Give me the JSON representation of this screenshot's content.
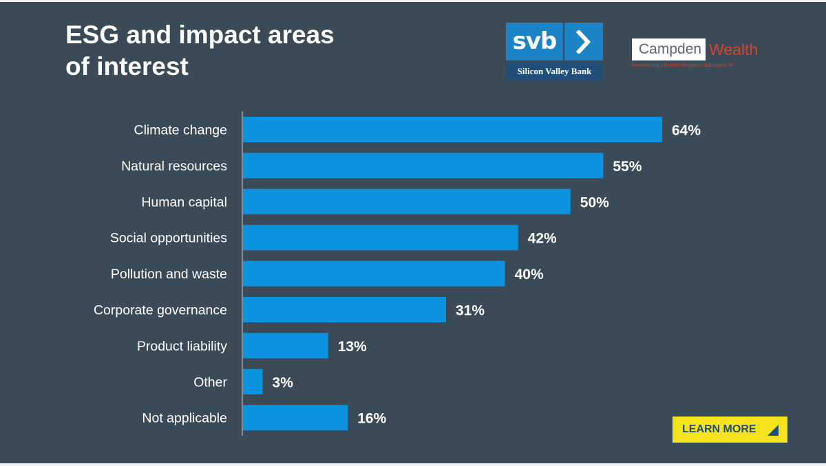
{
  "title": {
    "line1": "ESG and impact areas",
    "line2": "of interest"
  },
  "svb_logo": {
    "word": "svb",
    "subtitle": "Silicon Valley Bank",
    "icon": "chevron-right-icon",
    "color": "#1c84c6"
  },
  "campden_logo": {
    "part1": "Campden",
    "part2": "Wealth",
    "tagline": "Membership | Events   Research   Education   IFI",
    "color": "#d2452f"
  },
  "cta": {
    "label": "LEARN MORE",
    "icon": "triangle-arrow-icon",
    "color": "#f4e31c"
  },
  "colors": {
    "background": "#3a4a56",
    "bar": "#0b93df",
    "text": "#ffffff"
  },
  "chart_data": {
    "type": "bar",
    "orientation": "horizontal",
    "categories": [
      "Climate change",
      "Natural resources",
      "Human capital",
      "Social opportunities",
      "Pollution and waste",
      "Corporate governance",
      "Product liability",
      "Other",
      "Not applicable"
    ],
    "values": [
      64,
      55,
      50,
      42,
      40,
      31,
      13,
      3,
      16
    ],
    "value_labels": [
      "64%",
      "55%",
      "50%",
      "42%",
      "40%",
      "31%",
      "13%",
      "3%",
      "16%"
    ],
    "title": "ESG and impact areas of interest",
    "xlim": [
      0,
      64
    ],
    "grid": false,
    "legend": "none"
  }
}
